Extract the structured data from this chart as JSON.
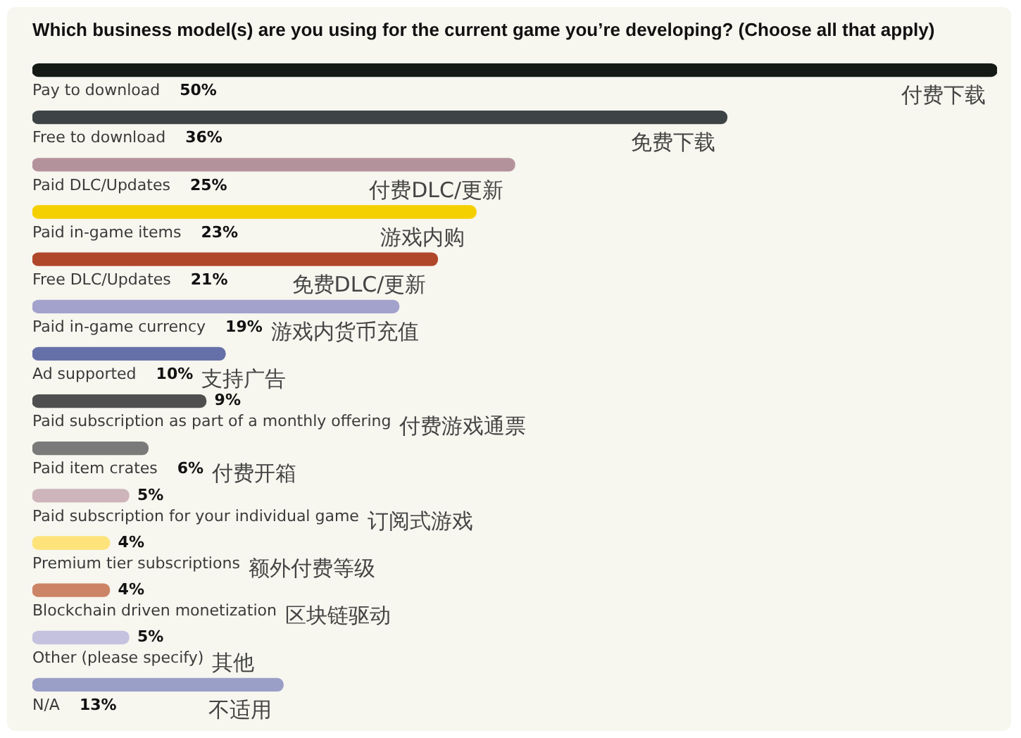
{
  "chart_data": {
    "type": "bar",
    "orientation": "horizontal",
    "title": "Which business model(s) are you using for the current game you’re developing? (Choose all that apply)",
    "categories": [
      "Pay to download",
      "Free to download",
      "Paid DLC/Updates",
      "Paid in-game items",
      "Free DLC/Updates",
      "Paid in-game currency",
      "Ad supported",
      "Paid subscription as part of a monthly offering",
      "Paid item crates",
      "Paid subscription for your individual game",
      "Premium tier subscriptions",
      "Blockchain driven monetization",
      "Other (please specify)",
      "N/A"
    ],
    "values": [
      50,
      36,
      25,
      23,
      21,
      19,
      10,
      9,
      6,
      5,
      4,
      4,
      5,
      13
    ],
    "colors": [
      "#151a16",
      "#3e4446",
      "#b4929c",
      "#f5d000",
      "#b0472a",
      "#a3a2cc",
      "#6670a8",
      "#4f4f4f",
      "#7a7a7a",
      "#cdb5bb",
      "#fde37a",
      "#cc8466",
      "#c4c2de",
      "#9a9fc8"
    ],
    "value_labels": [
      "50%",
      "36%",
      "25%",
      "23%",
      "21%",
      "19%",
      "10%",
      "9%",
      "6%",
      "5%",
      "4%",
      "4%",
      "5%",
      "13%"
    ],
    "annotations": [
      "付费下载",
      "免费下载",
      "付费DLC/更新",
      "游戏内购",
      "免费DLC/更新",
      "游戏内货币充值",
      "支持广告",
      "付费游戏通票",
      "付费开箱",
      "订阅式游戏",
      "额外付费等级",
      "区块链驱动",
      "其他",
      "不适用"
    ],
    "xlim": [
      0,
      50
    ]
  }
}
